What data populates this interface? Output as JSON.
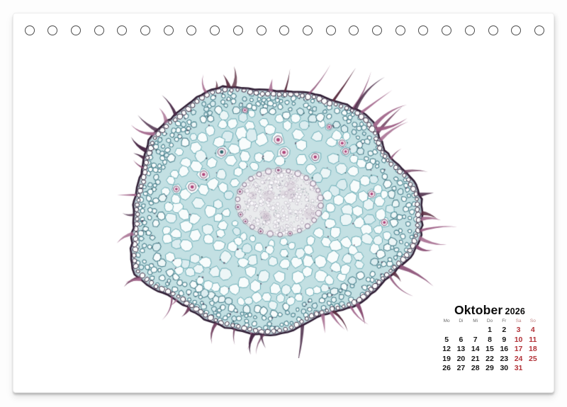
{
  "sheet": {
    "background": "#ffffff",
    "page_background": "#fdfdfd"
  },
  "binding": {
    "hole_count": 23
  },
  "calendar": {
    "month": "Oktober",
    "year": "2026",
    "weekday_headers": [
      "Mo",
      "Di",
      "Mi",
      "Do",
      "Fr",
      "Sa",
      "So"
    ],
    "weekend_columns": [
      5,
      6
    ],
    "weeks": [
      [
        "",
        "",
        "",
        "1",
        "2",
        "3",
        "4"
      ],
      [
        "5",
        "6",
        "7",
        "8",
        "9",
        "10",
        "11"
      ],
      [
        "12",
        "13",
        "14",
        "15",
        "16",
        "17",
        "18"
      ],
      [
        "19",
        "20",
        "21",
        "22",
        "23",
        "24",
        "25"
      ],
      [
        "26",
        "27",
        "28",
        "29",
        "30",
        "31",
        ""
      ]
    ],
    "colors": {
      "title": "#0b0b0b",
      "weekday_header": "#6b6b6b",
      "weekend_header": "#c08484",
      "date": "#161616",
      "weekend_date": "#b23238"
    }
  },
  "micrograph": {
    "subject": "plant-root-cross-section",
    "palette": {
      "ground": "#c3e0e3",
      "cell_fill": "#f8fcfc",
      "cell_fill_alt": "#edf6f7",
      "cell_fill_deep": "#dcedf0",
      "cell_wall": "#5fa6b0",
      "cell_wall_dark": "#4e8490",
      "rim": "#2e1c33",
      "rim_soft": "rgba(90,60,88,0.45)",
      "edge_cell_wall": "#3e2b42",
      "hairs": [
        "#8a4e74",
        "#9c5c83",
        "#71405f",
        "#4a2a47",
        "#a56b8e",
        "#5c2f42"
      ],
      "stele_fill": "#eaebed",
      "stele_ring": "#86718c",
      "stele_ring_fill": "#f4eef5",
      "stele_dot": "#9b5e85",
      "nucleus": "#b0487c",
      "nucleus_teal": "#2e6b70"
    }
  }
}
